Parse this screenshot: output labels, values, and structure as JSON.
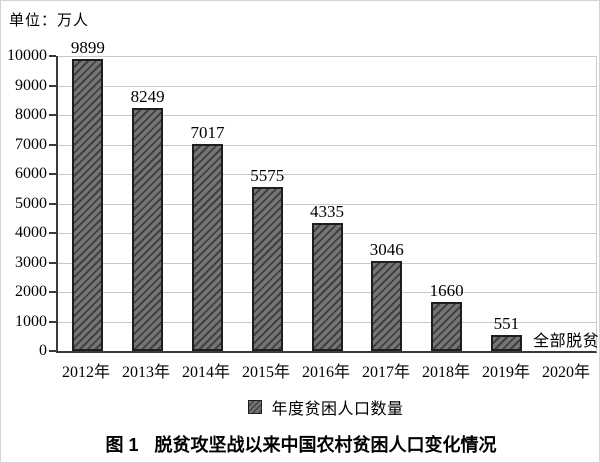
{
  "labels": {
    "unit": "单位：万人",
    "legend": "年度贫困人口数量",
    "caption_prefix": "图 1",
    "caption_title": "脱贫攻坚战以来中国农村贫困人口变化情况"
  },
  "chart_data": {
    "type": "bar",
    "title": "图 1 脱贫攻坚战以来中国农村贫困人口变化情况",
    "unit_label": "单位：万人",
    "categories": [
      "2012年",
      "2013年",
      "2014年",
      "2015年",
      "2016年",
      "2017年",
      "2018年",
      "2019年",
      "2020年"
    ],
    "values": [
      9899,
      8249,
      7017,
      5575,
      4335,
      3046,
      1660,
      551,
      null
    ],
    "annotations": [
      {
        "category": "2020年",
        "text": "全部脱贫"
      }
    ],
    "legend_entries": [
      "年度贫困人口数量"
    ],
    "legend_position": "bottom",
    "xlabel": "",
    "ylabel": "单位：万人",
    "ylim": [
      0,
      10000
    ],
    "ytick_step": 1000,
    "grid": true,
    "bar_pattern": "diagonal-hatch"
  },
  "colors": {
    "background": "#ffffff",
    "frame_border": "#d4d4d4",
    "text": "#000000",
    "axis": "#3a3a3a",
    "gridline": "#c9c9c9",
    "bar_fill": "#757575",
    "bar_hatch": "#404040",
    "bar_border": "#1e1e1e"
  }
}
